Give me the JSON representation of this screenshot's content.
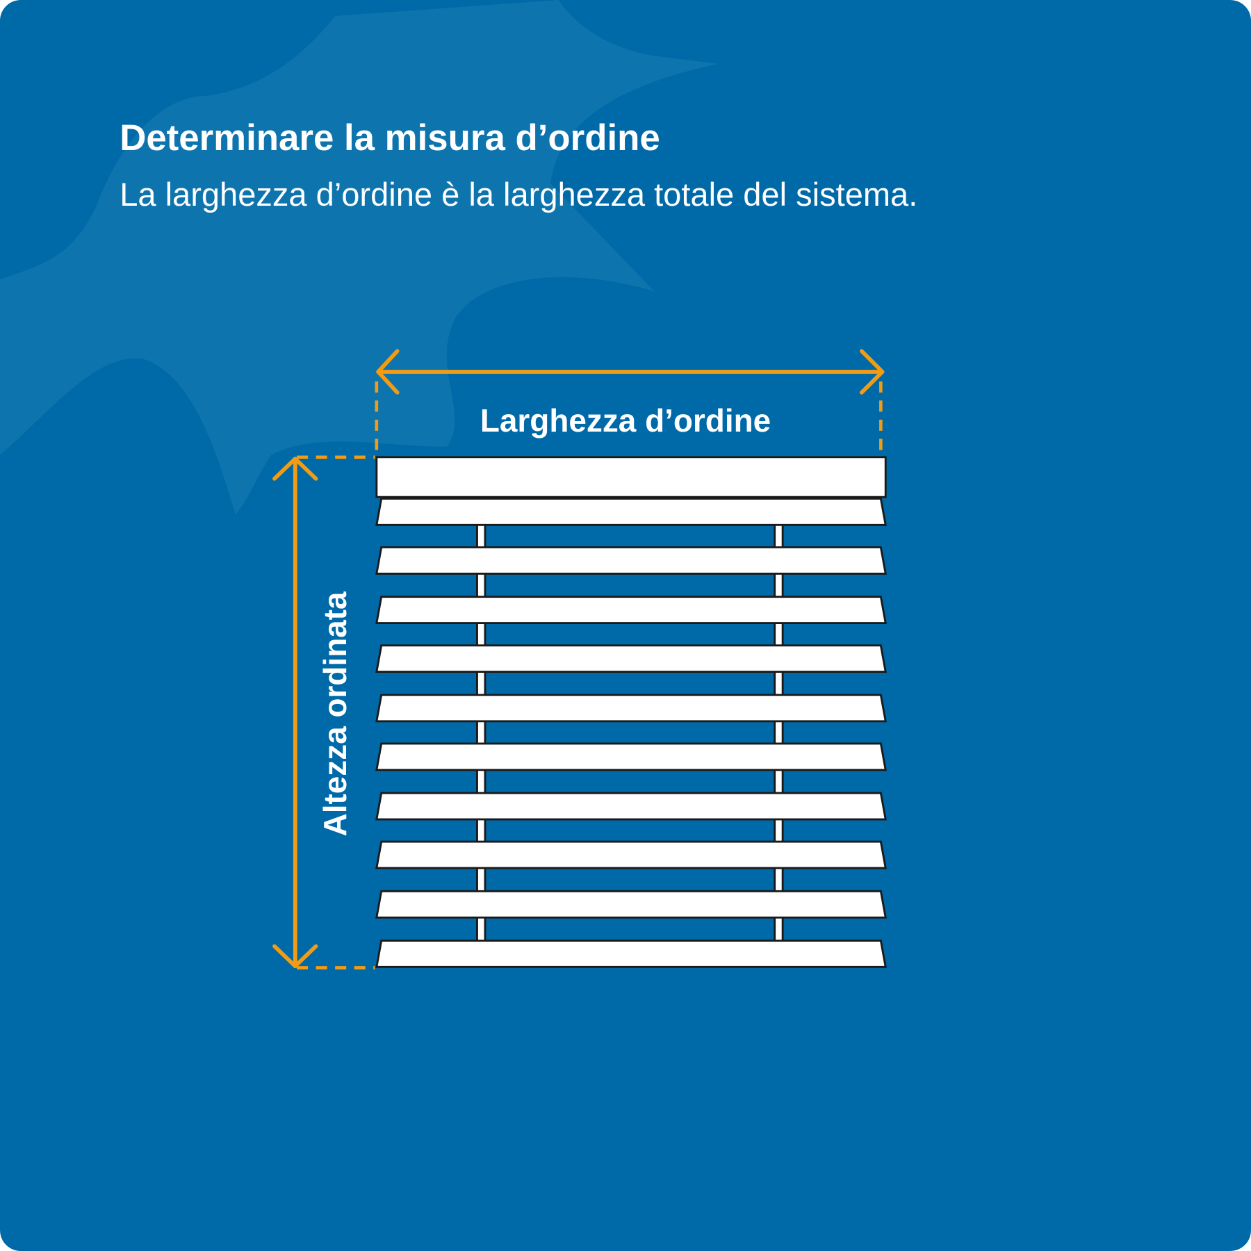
{
  "header": {
    "title": "Determinare la misura d’ordine",
    "subtitle": "La larghezza d’ordine è la larghezza totale del sistema."
  },
  "labels": {
    "width": "Larghezza d’ordine",
    "height": "Altezza ordinata"
  }
}
